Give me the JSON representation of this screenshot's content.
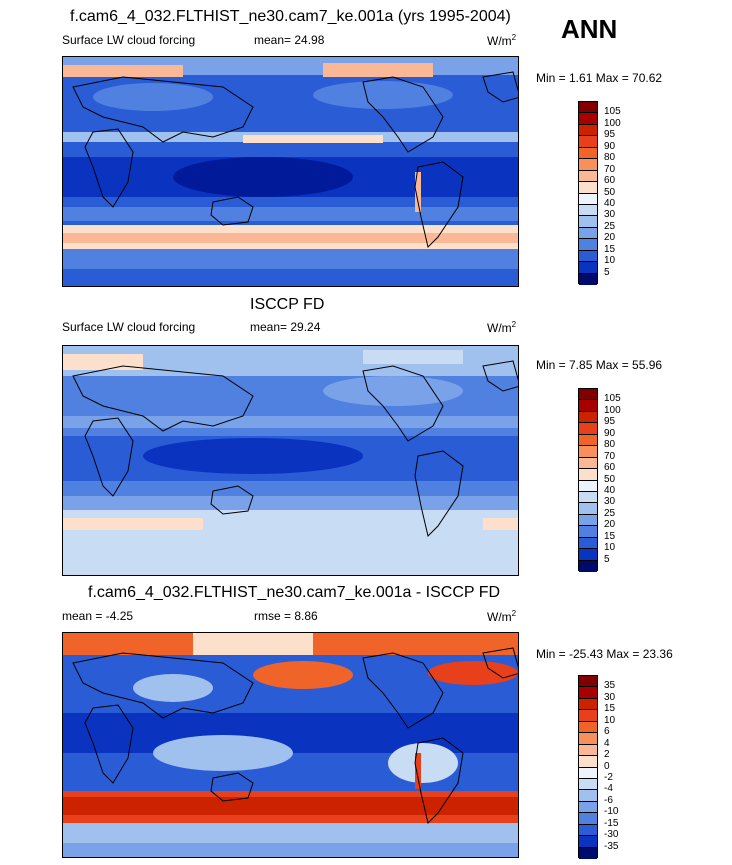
{
  "season": "ANN",
  "panels": [
    {
      "title": "f.cam6_4_032.FLTHIST_ne30.cam7_ke.001a (yrs 1995-2004)",
      "left_label": "Surface LW cloud forcing",
      "center_label": "mean=  24.98",
      "units": "W/m",
      "units_sup": "2",
      "minmax": "Min =   1.61 Max =  70.62",
      "colorbar_labels": [
        "105",
        "100",
        "95",
        "90",
        "80",
        "70",
        "60",
        "50",
        "40",
        "30",
        "25",
        "20",
        "15",
        "10",
        "5"
      ]
    },
    {
      "title": "ISCCP FD",
      "left_label": "Surface LW cloud forcing",
      "center_label": "mean=  29.24",
      "units": "W/m",
      "units_sup": "2",
      "minmax": "Min =   7.85 Max =  55.96",
      "colorbar_labels": [
        "105",
        "100",
        "95",
        "90",
        "80",
        "70",
        "60",
        "50",
        "40",
        "30",
        "25",
        "20",
        "15",
        "10",
        "5"
      ]
    },
    {
      "title": "f.cam6_4_032.FLTHIST_ne30.cam7_ke.001a - ISCCP FD",
      "left_label": "mean =  -4.25",
      "center_label": "rmse =   8.86",
      "units": "W/m",
      "units_sup": "2",
      "minmax": "Min = -25.43 Max =  23.36",
      "colorbar_labels": [
        "35",
        "30",
        "15",
        "10",
        "6",
        "4",
        "2",
        "0",
        "-2",
        "-4",
        "-6",
        "-10",
        "-15",
        "-30",
        "-35"
      ]
    }
  ],
  "colors": {
    "seq": [
      "#800000",
      "#a80000",
      "#cc2200",
      "#e8401a",
      "#f0642a",
      "#f7905a",
      "#fab896",
      "#fde0cc",
      "#eef4fb",
      "#c8dcf4",
      "#a0c0ee",
      "#7aa2e8",
      "#5080e0",
      "#2a5cd6",
      "#0a34c0",
      "#001a9a",
      "#000a6a"
    ]
  },
  "chart_data": [
    {
      "type": "heatmap",
      "title": "f.cam6_4_032.FLTHIST_ne30.cam7_ke.001a (yrs 1995-2004)",
      "subtitle": "Surface LW cloud forcing",
      "units": "W/m2",
      "mean": 24.98,
      "min": 1.61,
      "max": 70.62,
      "contour_levels": [
        5,
        10,
        15,
        20,
        25,
        30,
        40,
        50,
        60,
        70,
        80,
        90,
        95,
        100,
        105
      ]
    },
    {
      "type": "heatmap",
      "title": "ISCCP FD",
      "subtitle": "Surface LW cloud forcing",
      "units": "W/m2",
      "mean": 29.24,
      "min": 7.85,
      "max": 55.96,
      "contour_levels": [
        5,
        10,
        15,
        20,
        25,
        30,
        40,
        50,
        60,
        70,
        80,
        90,
        95,
        100,
        105
      ]
    },
    {
      "type": "heatmap",
      "title": "f.cam6_4_032.FLTHIST_ne30.cam7_ke.001a - ISCCP FD",
      "units": "W/m2",
      "mean": -4.25,
      "rmse": 8.86,
      "min": -25.43,
      "max": 23.36,
      "contour_levels": [
        -35,
        -30,
        -15,
        -10,
        -6,
        -4,
        -2,
        0,
        2,
        4,
        6,
        10,
        15,
        30,
        35
      ]
    }
  ]
}
